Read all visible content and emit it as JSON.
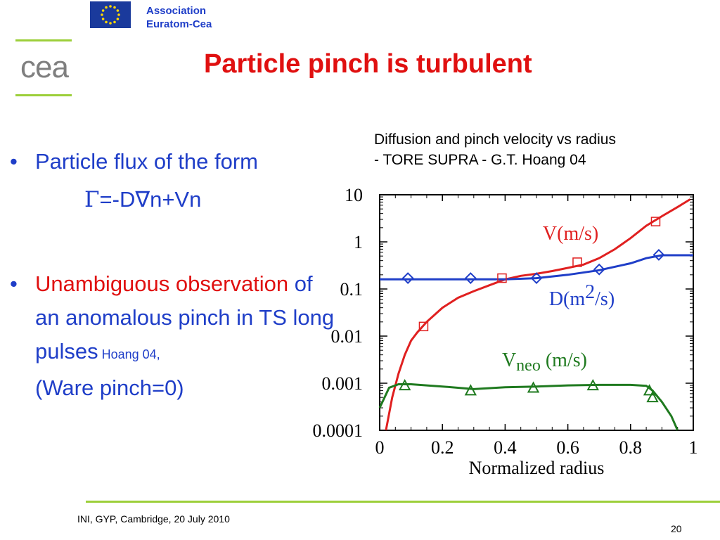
{
  "header": {
    "association_line1": "Association",
    "association_line2": "Euratom-Cea",
    "logo_text": "cea",
    "title": "Particle pinch is turbulent",
    "colors": {
      "association": "#1f3ec8",
      "title": "#e01010",
      "logo_lines": "#9ccf3a",
      "logo_text": "#7f7f7f"
    }
  },
  "caption": {
    "line1": "Diffusion and pinch velocity vs radius",
    "line2": "- TORE SUPRA - G.T. Hoang 04"
  },
  "bullets": {
    "b1_text": "Particle flux of the form",
    "formula_gamma": "Γ",
    "formula_eq": "=",
    "formula_rest": "-D∇n+Vn",
    "b2_red": "Unambiguous observation",
    "b2_rest": " of an anomalous pinch in TS long pulses",
    "b2_ref": " Hoang 04,",
    "b2_ware": "(Ware pinch=0)"
  },
  "footer": {
    "text": "INI, GYP, Cambridge, 20 July 2010",
    "page": "20"
  },
  "chart_data": {
    "type": "line",
    "xlabel": "Normalized radius",
    "ylabel": "",
    "yscale": "log",
    "xlim": [
      0,
      1
    ],
    "ylim": [
      0.0001,
      10
    ],
    "x_ticks": [
      "0",
      "0.2",
      "0.4",
      "0.6",
      "0.8",
      "1"
    ],
    "y_ticks": [
      "10",
      "1",
      "0.1",
      "0.01",
      "0.001",
      "0.0001"
    ],
    "grid": false,
    "series": [
      {
        "name": "V(m/s)",
        "label_parts": [
          "V(m/s)"
        ],
        "color": "#e02020",
        "marker": "square",
        "line": [
          [
            0.02,
            0.0001
          ],
          [
            0.04,
            0.0005
          ],
          [
            0.06,
            0.0016
          ],
          [
            0.08,
            0.004
          ],
          [
            0.1,
            0.008
          ],
          [
            0.12,
            0.012
          ],
          [
            0.15,
            0.02
          ],
          [
            0.2,
            0.04
          ],
          [
            0.25,
            0.065
          ],
          [
            0.3,
            0.09
          ],
          [
            0.35,
            0.12
          ],
          [
            0.4,
            0.16
          ],
          [
            0.45,
            0.19
          ],
          [
            0.5,
            0.21
          ],
          [
            0.55,
            0.24
          ],
          [
            0.6,
            0.28
          ],
          [
            0.65,
            0.33
          ],
          [
            0.7,
            0.45
          ],
          [
            0.75,
            0.7
          ],
          [
            0.8,
            1.2
          ],
          [
            0.85,
            2.2
          ],
          [
            0.9,
            3.5
          ],
          [
            0.95,
            5.5
          ],
          [
            0.99,
            8
          ]
        ],
        "markers": [
          [
            0.14,
            0.016
          ],
          [
            0.39,
            0.17
          ],
          [
            0.63,
            0.37
          ],
          [
            0.88,
            2.7
          ]
        ]
      },
      {
        "name": "D(m2/s)",
        "label_parts": [
          "D(m",
          "2",
          "/s)"
        ],
        "color": "#1f3ec8",
        "marker": "diamond",
        "line": [
          [
            0.0,
            0.16
          ],
          [
            0.4,
            0.16
          ],
          [
            0.5,
            0.17
          ],
          [
            0.6,
            0.2
          ],
          [
            0.7,
            0.25
          ],
          [
            0.8,
            0.35
          ],
          [
            0.85,
            0.45
          ],
          [
            0.9,
            0.52
          ],
          [
            1.0,
            0.52
          ]
        ],
        "markers": [
          [
            0.09,
            0.17
          ],
          [
            0.29,
            0.17
          ],
          [
            0.5,
            0.17
          ],
          [
            0.7,
            0.26
          ],
          [
            0.89,
            0.53
          ]
        ]
      },
      {
        "name": "Vneo (m/s)",
        "label_parts": [
          "V",
          "neo",
          " (m/s)"
        ],
        "color": "#1f7a1f",
        "marker": "triangle",
        "line": [
          [
            0.0,
            0.0003
          ],
          [
            0.03,
            0.0008
          ],
          [
            0.06,
            0.00095
          ],
          [
            0.1,
            0.00095
          ],
          [
            0.2,
            0.00085
          ],
          [
            0.3,
            0.00075
          ],
          [
            0.4,
            0.00082
          ],
          [
            0.5,
            0.00085
          ],
          [
            0.6,
            0.0009
          ],
          [
            0.7,
            0.00092
          ],
          [
            0.8,
            0.00092
          ],
          [
            0.85,
            0.00088
          ],
          [
            0.87,
            0.0007
          ],
          [
            0.9,
            0.0004
          ],
          [
            0.93,
            0.0002
          ],
          [
            0.95,
            0.0001
          ]
        ],
        "markers": [
          [
            0.08,
            0.0009
          ],
          [
            0.29,
            0.0007
          ],
          [
            0.49,
            0.0008
          ],
          [
            0.68,
            0.0009
          ],
          [
            0.86,
            0.0007
          ],
          [
            0.87,
            0.0005
          ]
        ]
      }
    ]
  }
}
